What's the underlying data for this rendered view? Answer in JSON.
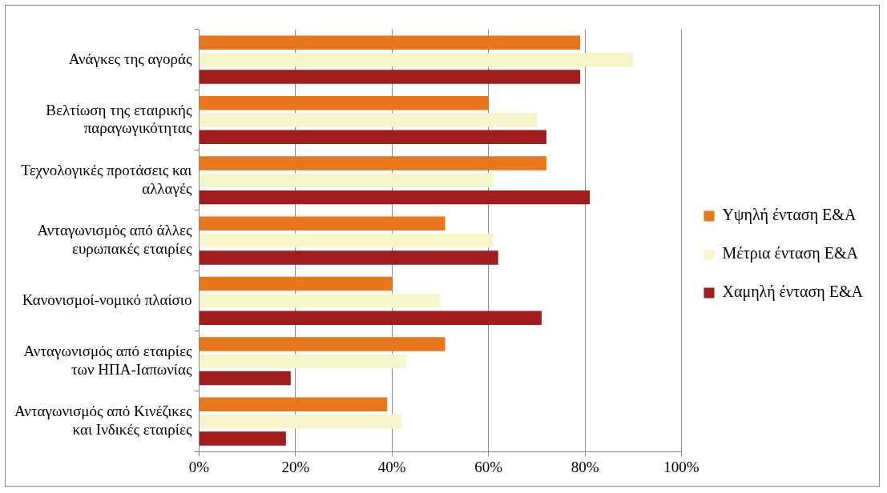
{
  "chart_data": {
    "type": "bar",
    "orientation": "horizontal",
    "categories": [
      "Ανάγκες της αγοράς",
      "Βελτίωση της εταιρικής παραγωγικότητας",
      "Τεχνολογικές προτάσεις και αλλαγές",
      "Ανταγωνισμός από άλλες ευρωπακές εταιρίες",
      "Κανονισμοί-νομικό πλαίσιο",
      "Ανταγωνισμός από εταιρίες των ΗΠΑ-Ιαπωνίας",
      "Ανταγωνισμός από Κινέζικες και Ινδικές εταιρίες"
    ],
    "series": [
      {
        "name": "Υψηλή ένταση Ε&Α",
        "color": "#e8761c",
        "values": [
          79,
          60,
          72,
          51,
          40,
          51,
          39
        ]
      },
      {
        "name": "Μέτρια ένταση Ε&Α",
        "color": "#f7f5cc",
        "values": [
          90,
          70,
          61,
          61,
          50,
          43,
          42
        ]
      },
      {
        "name": "Χαμηλή ένταση Ε&Α",
        "color": "#a11d1d",
        "values": [
          79,
          72,
          81,
          62,
          71,
          19,
          18
        ]
      }
    ],
    "xlim": [
      0,
      100
    ],
    "xticks": [
      {
        "value": 0,
        "label": "0%"
      },
      {
        "value": 20,
        "label": "20%"
      },
      {
        "value": 40,
        "label": "40%"
      },
      {
        "value": 60,
        "label": "60%"
      },
      {
        "value": 80,
        "label": "80%"
      },
      {
        "value": 100,
        "label": "100%"
      }
    ],
    "grid": "x",
    "legend": "right"
  }
}
